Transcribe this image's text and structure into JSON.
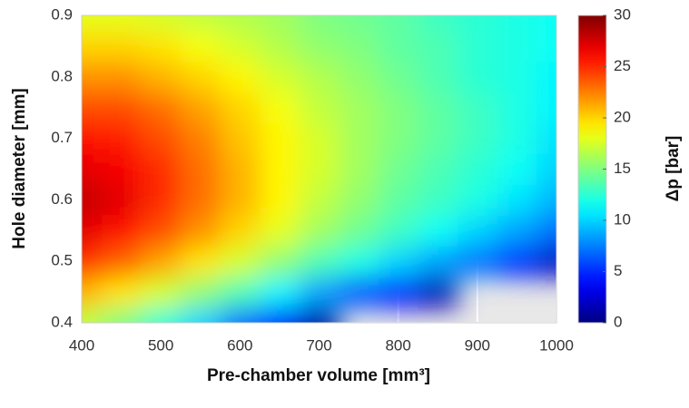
{
  "chart_data": {
    "type": "contour",
    "xlabel": "Pre-chamber volume [mm³]",
    "ylabel": "Hole diameter [mm]",
    "colorbar_label": "Δp [bar]",
    "colormap": "jet",
    "background": "#e8e8e8",
    "grid": true,
    "x": [
      400,
      450,
      500,
      550,
      600,
      650,
      700,
      750,
      800,
      850,
      900,
      950,
      1000
    ],
    "y": [
      0.4,
      0.45,
      0.5,
      0.55,
      0.6,
      0.65,
      0.7,
      0.75,
      0.8,
      0.85,
      0.9
    ],
    "z": [
      [
        17,
        15,
        12.5,
        10,
        7,
        4,
        1,
        null,
        null,
        null,
        null,
        null,
        null
      ],
      [
        21,
        19.5,
        17.5,
        15.5,
        13.5,
        11,
        8.5,
        6,
        4,
        1.5,
        null,
        null,
        null
      ],
      [
        25,
        23.5,
        21.5,
        19.5,
        17.5,
        15.5,
        13.5,
        12,
        10,
        8.5,
        7,
        5,
        2
      ],
      [
        27,
        26,
        24,
        22,
        20,
        18,
        16,
        14.5,
        13,
        11.5,
        10,
        8.5,
        7
      ],
      [
        28,
        27,
        25,
        23,
        21,
        19,
        17,
        15.5,
        14,
        13,
        12,
        10.5,
        9
      ],
      [
        27,
        26.5,
        25,
        23,
        21,
        19,
        17.5,
        16,
        14.5,
        13.5,
        12.5,
        11.5,
        10
      ],
      [
        26,
        25.5,
        24,
        22.5,
        20.5,
        19,
        17.5,
        16,
        15,
        14,
        13,
        12,
        10.5
      ],
      [
        24,
        24,
        23,
        21.5,
        20,
        18.5,
        17,
        16,
        15,
        14,
        13,
        12,
        11
      ],
      [
        22,
        22,
        21,
        20,
        19,
        17.5,
        16.5,
        15.5,
        14.5,
        13.5,
        12.5,
        12,
        11
      ],
      [
        20,
        20,
        19.5,
        18.5,
        17.5,
        16.5,
        15.5,
        15,
        14,
        13.5,
        12.5,
        12,
        11.5
      ],
      [
        18,
        18,
        17.5,
        17,
        16.5,
        16,
        15,
        14.5,
        14,
        13,
        12.5,
        12,
        11.5
      ]
    ],
    "xlim": [
      400,
      1000
    ],
    "xticks": [
      400,
      500,
      600,
      700,
      800,
      900,
      1000
    ],
    "ylim": [
      0.4,
      0.9
    ],
    "yticks": [
      0.4,
      0.5,
      0.6,
      0.7,
      0.8,
      0.9
    ],
    "zlim": [
      0,
      30
    ],
    "zticks": [
      0,
      5,
      10,
      15,
      20,
      25,
      30
    ]
  }
}
